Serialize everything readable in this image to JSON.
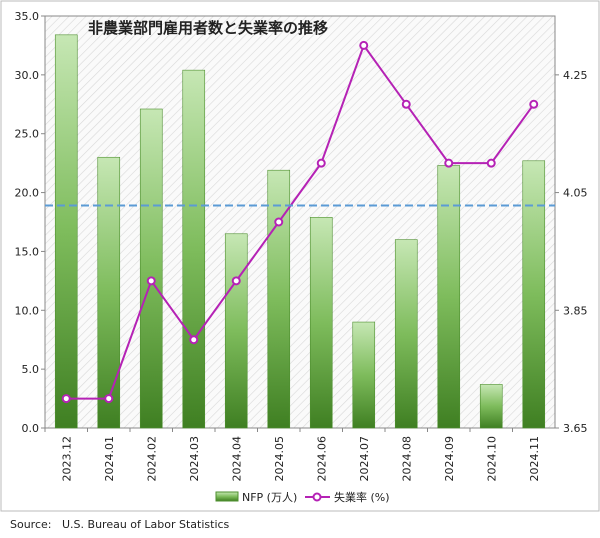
{
  "chart_data": {
    "type": "bar-line",
    "title": "非農業部門雇用者数と失業率の推移",
    "categories": [
      "2023.12",
      "2024.01",
      "2024.02",
      "2024.03",
      "2024.04",
      "2024.05",
      "2024.06",
      "2024.07",
      "2024.08",
      "2024.09",
      "2024.10",
      "2024.11"
    ],
    "series": [
      {
        "name": "NFP (万人)",
        "color": "#4e8f2f",
        "values": [
          33.4,
          23.0,
          27.1,
          30.4,
          16.5,
          21.9,
          17.9,
          9.0,
          16.0,
          22.3,
          3.7,
          22.7
        ]
      },
      {
        "name": "失業率 (%)",
        "color": "#b522b5",
        "axis": "y2",
        "values": [
          3.7,
          3.7,
          3.9,
          3.8,
          3.9,
          4.0,
          4.1,
          4.3,
          4.2,
          4.1,
          4.1,
          4.2
        ]
      }
    ],
    "ylim": [
      0,
      35
    ],
    "yticks": [
      {
        "value": 0,
        "label": "0.0"
      },
      {
        "value": 5,
        "label": "5.0"
      },
      {
        "value": 10,
        "label": "10.0"
      },
      {
        "value": 15,
        "label": "15.0"
      },
      {
        "value": 20,
        "label": "20.0"
      },
      {
        "value": 25,
        "label": "25.0"
      },
      {
        "value": 30,
        "label": "30.0"
      },
      {
        "value": 35,
        "label": "35.0"
      }
    ],
    "y2lim": [
      3.65,
      4.35
    ],
    "y2ticks": [
      3.65,
      3.85,
      4.05,
      4.25
    ],
    "reference_line": {
      "value": 18.9,
      "color": "#5b9bd5"
    },
    "source_label": "Source:",
    "source": "U.S. Bureau of Labor Statistics"
  }
}
